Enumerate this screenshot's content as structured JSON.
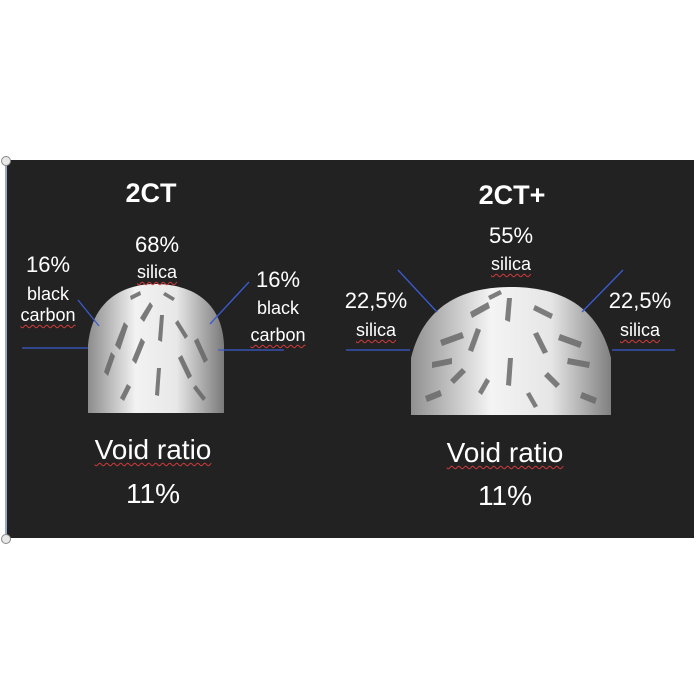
{
  "left_tire": {
    "title": "2CT",
    "center": {
      "percent": "68%",
      "material": "silica"
    },
    "left_side": {
      "percent": "16%",
      "material_line1": "black",
      "material_line2": "carbon"
    },
    "right_side": {
      "percent": "16%",
      "material_line1": "black",
      "material_line2": "carbon"
    },
    "void_label": "Void ratio",
    "void_value": "11%"
  },
  "right_tire": {
    "title": "2CT+",
    "center": {
      "percent": "55%",
      "material": "silica"
    },
    "left_side": {
      "percent": "22,5%",
      "material": "silica"
    },
    "right_side": {
      "percent": "22,5%",
      "material": "silica"
    },
    "void_label": "Void ratio",
    "void_value": "11%"
  },
  "colors": {
    "slide_background": "#222222",
    "leader_line": "#3a5bd0",
    "spellcheck_underline": "#d23b3b",
    "tire": "#d9d9d9"
  }
}
